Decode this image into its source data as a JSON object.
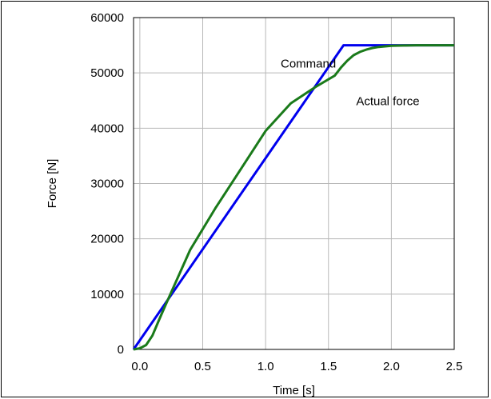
{
  "chart_data": {
    "type": "line",
    "title": "",
    "xlabel": "Time [s]",
    "ylabel": "Force [N]",
    "xlim": [
      -0.05,
      2.5
    ],
    "ylim": [
      0,
      60000
    ],
    "x_ticks": [
      0.0,
      0.5,
      1.0,
      1.5,
      2.0,
      2.5
    ],
    "x_tick_labels": [
      "0.0",
      "0.5",
      "1.0",
      "1.5",
      "2.0",
      "2.5"
    ],
    "y_ticks": [
      0,
      10000,
      20000,
      30000,
      40000,
      50000,
      60000
    ],
    "y_tick_labels": [
      "0",
      "10000",
      "20000",
      "30000",
      "40000",
      "50000",
      "60000"
    ],
    "grid": true,
    "legend": "none",
    "series": [
      {
        "name": "Command",
        "color": "#0000ee",
        "x": [
          -0.05,
          1.62,
          2.5
        ],
        "y": [
          0,
          55000,
          55000
        ]
      },
      {
        "name": "Actual force",
        "color": "#1a7a1a",
        "x": [
          -0.05,
          0.0,
          0.05,
          0.1,
          0.15,
          0.2,
          0.4,
          0.6,
          0.8,
          1.0,
          1.2,
          1.4,
          1.55,
          1.6,
          1.65,
          1.7,
          1.75,
          1.8,
          1.85,
          1.9,
          1.95,
          2.0,
          2.1,
          2.2,
          2.3,
          2.4,
          2.5
        ],
        "y": [
          0,
          200,
          800,
          2500,
          5200,
          7800,
          18000,
          25500,
          32500,
          39500,
          44500,
          47500,
          49500,
          51000,
          52200,
          53200,
          53800,
          54200,
          54500,
          54700,
          54800,
          54900,
          54950,
          55000,
          55000,
          55000,
          55000
        ]
      }
    ],
    "annotations": [
      {
        "text": "Command",
        "series": "Command"
      },
      {
        "text": "Actual force",
        "series": "Actual force"
      }
    ]
  }
}
